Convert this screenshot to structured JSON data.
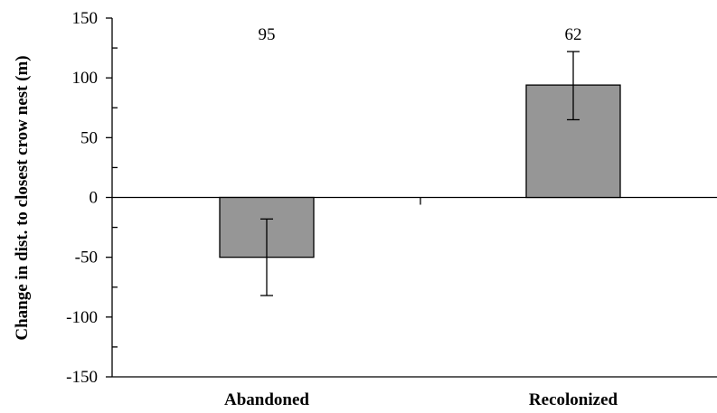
{
  "chart_data": {
    "type": "bar",
    "categories": [
      "Abandoned",
      "Recolonized"
    ],
    "values": [
      -50,
      94
    ],
    "error_bars": [
      {
        "low": -82,
        "high": -18
      },
      {
        "low": 65,
        "high": 122
      }
    ],
    "sample_sizes": [
      "95",
      "62"
    ],
    "ylabel": "Change in dist. to closest crow nest (m)",
    "xlabel": "",
    "ylim": [
      -150,
      150
    ],
    "yticks": [
      150,
      100,
      50,
      0,
      -50,
      -100,
      -150
    ],
    "ytick_labels": [
      "150",
      "100",
      "50",
      "0",
      "-50",
      "-100",
      "-150"
    ],
    "grid": false,
    "bar_color": "#969696",
    "bar_edge_color": "#000000"
  }
}
